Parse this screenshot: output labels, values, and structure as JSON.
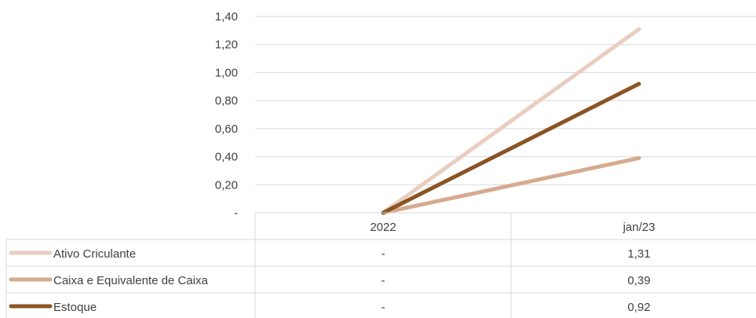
{
  "chart_data": {
    "type": "line",
    "categories": [
      "2022",
      "jan/23"
    ],
    "series": [
      {
        "name": "Ativo Criculante",
        "values": [
          0,
          1.31
        ],
        "display": [
          "-",
          "1,31"
        ],
        "color": "#E9CDBF"
      },
      {
        "name": "Caixa e Equivalente de Caixa",
        "values": [
          0,
          0.39
        ],
        "display": [
          "-",
          "0,39"
        ],
        "color": "#D6AA8F"
      },
      {
        "name": "Estoque",
        "values": [
          0,
          0.92
        ],
        "display": [
          "-",
          "0,92"
        ],
        "color": "#8B5424"
      }
    ],
    "y_ticks": [
      {
        "value": 0,
        "label": "-"
      },
      {
        "value": 0.2,
        "label": "0,20"
      },
      {
        "value": 0.4,
        "label": "0,40"
      },
      {
        "value": 0.6,
        "label": "0,60"
      },
      {
        "value": 0.8,
        "label": "0,80"
      },
      {
        "value": 1.0,
        "label": "1,00"
      },
      {
        "value": 1.2,
        "label": "1,20"
      },
      {
        "value": 1.4,
        "label": "1,40"
      }
    ],
    "ylim": [
      0,
      1.4
    ],
    "grid": true,
    "legend": "data-table"
  }
}
